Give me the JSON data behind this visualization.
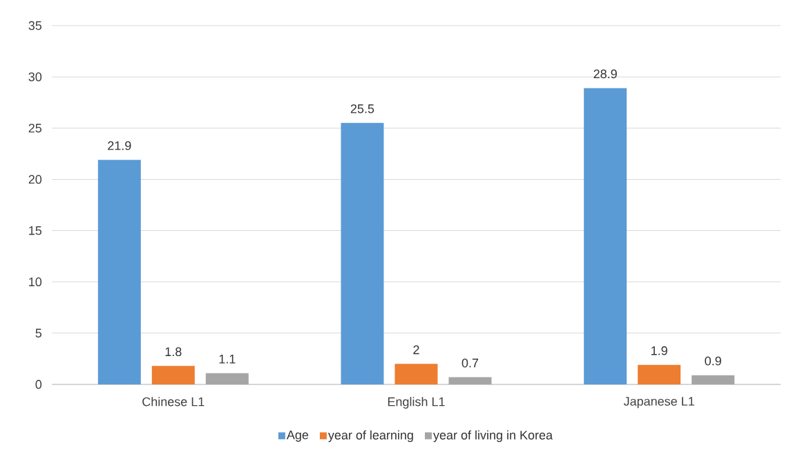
{
  "chart_data": {
    "type": "bar",
    "categories": [
      "Chinese L1",
      "English L1",
      "Japanese L1"
    ],
    "series": [
      {
        "name": "Age",
        "color": "#5b9bd5",
        "values": [
          21.9,
          25.5,
          28.9
        ]
      },
      {
        "name": "year of learning",
        "color": "#ed7d31",
        "values": [
          1.8,
          2,
          1.9
        ]
      },
      {
        "name": "year of living in Korea",
        "color": "#a5a5a5",
        "values": [
          1.1,
          0.7,
          0.9
        ]
      }
    ],
    "ylim": [
      0,
      35
    ],
    "yticks": [
      0,
      5,
      10,
      15,
      20,
      25,
      30,
      35
    ],
    "grid": "y",
    "legend": "bottom",
    "data_labels": true
  }
}
